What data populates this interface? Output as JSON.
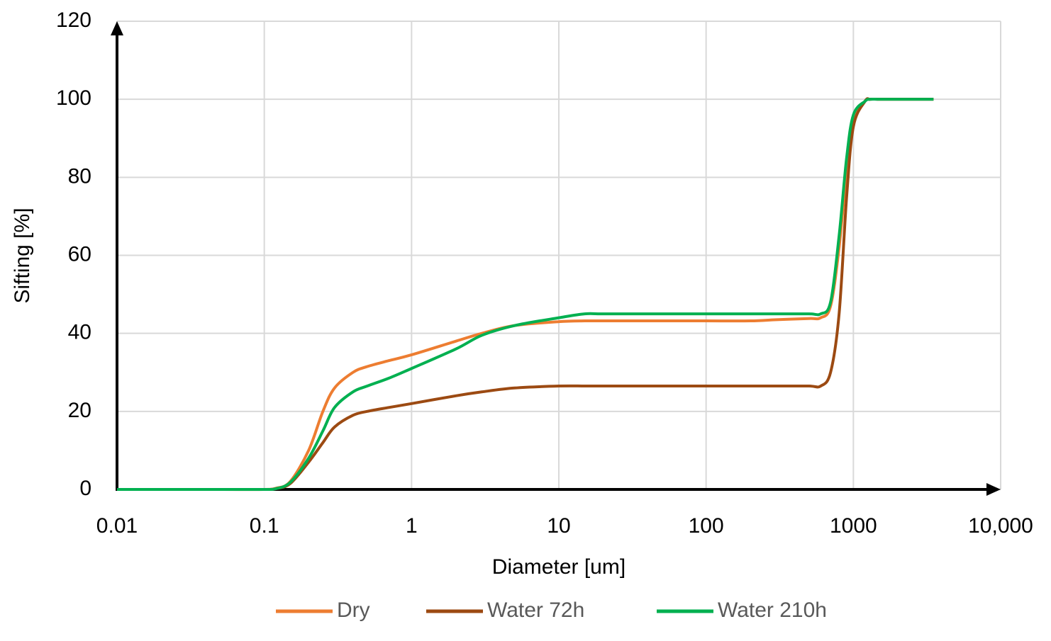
{
  "chart_data": {
    "type": "line",
    "x_label": "Diameter [um]",
    "y_label": "Sifting [%]",
    "x_log": true,
    "grid": true,
    "legend": "bottom",
    "x": [
      0.01,
      0.02,
      0.05,
      0.1,
      0.12,
      0.15,
      0.2,
      0.25,
      0.3,
      0.4,
      0.5,
      0.7,
      1,
      2,
      3,
      5,
      10,
      15,
      20,
      50,
      100,
      200,
      300,
      500,
      600,
      700,
      800,
      900,
      1000,
      1200,
      1300,
      1500,
      2000,
      3500
    ],
    "series": [
      {
        "name": "Dry",
        "color": "#ed7d31",
        "values": [
          0,
          0,
          0,
          0,
          0.3,
          2,
          10,
          20,
          26,
          30,
          31.5,
          33,
          34.5,
          38,
          40,
          42,
          43,
          43.2,
          43.2,
          43.2,
          43.2,
          43.2,
          43.5,
          43.8,
          44,
          47,
          62,
          82,
          95,
          99.5,
          100,
          100,
          100,
          100
        ]
      },
      {
        "name": "Water 72h",
        "color": "#9c4a12",
        "values": [
          0,
          0,
          0,
          0,
          0.2,
          1.5,
          7,
          12,
          16,
          19,
          20,
          21,
          22,
          24,
          25,
          26,
          26.5,
          26.5,
          26.5,
          26.5,
          26.5,
          26.5,
          26.5,
          26.5,
          26.5,
          30,
          45,
          75,
          93,
          99.5,
          100,
          100,
          100,
          100
        ]
      },
      {
        "name": "Water 210h",
        "color": "#00b050",
        "values": [
          0,
          0,
          0,
          0,
          0.2,
          1.8,
          8,
          15,
          21,
          25,
          26.5,
          28.5,
          31,
          36,
          39.5,
          42,
          44,
          45,
          45,
          45,
          45,
          45,
          45,
          45,
          45,
          48,
          65,
          85,
          96,
          99.5,
          100,
          100,
          100,
          100
        ]
      }
    ],
    "xlim": [
      0.01,
      10000
    ],
    "xticks": [
      0.01,
      0.1,
      1,
      10,
      100,
      1000,
      {
        "value": 10000,
        "label": "10,000"
      }
    ],
    "ylim": [
      0,
      120
    ],
    "yticks": [
      0,
      20,
      40,
      60,
      80,
      100,
      120
    ]
  }
}
